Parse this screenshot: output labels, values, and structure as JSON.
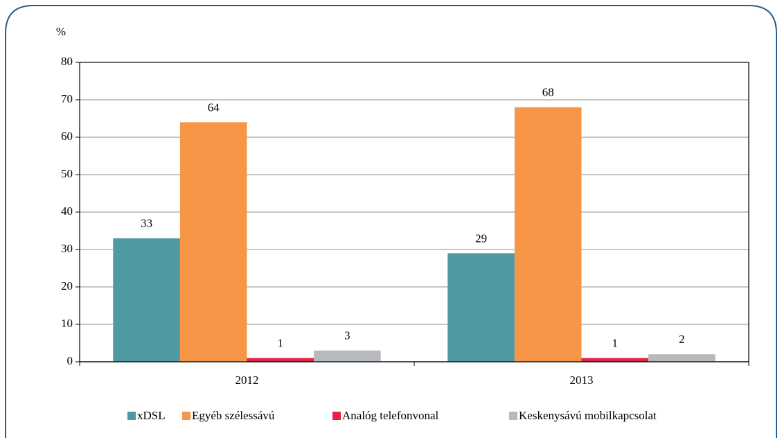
{
  "chart_data": {
    "type": "bar",
    "y_label": "%",
    "categories": [
      "2012",
      "2013"
    ],
    "series": [
      {
        "name": "xDSL",
        "color": "#4e9aa3",
        "values": [
          33,
          29
        ]
      },
      {
        "name": "Egyéb szélessávú",
        "color": "#f79646",
        "values": [
          64,
          68
        ]
      },
      {
        "name": "Analóg telefonvonal",
        "color": "#e0234a",
        "values": [
          1,
          1
        ]
      },
      {
        "name": "Keskenysávú mobilkapcsolat",
        "color": "#b7babd",
        "values": [
          3,
          2
        ]
      }
    ],
    "ylim": [
      0,
      80
    ],
    "yticks": [
      0,
      10,
      20,
      30,
      40,
      50,
      60,
      70,
      80
    ],
    "grid": true,
    "legend": "bottom"
  }
}
